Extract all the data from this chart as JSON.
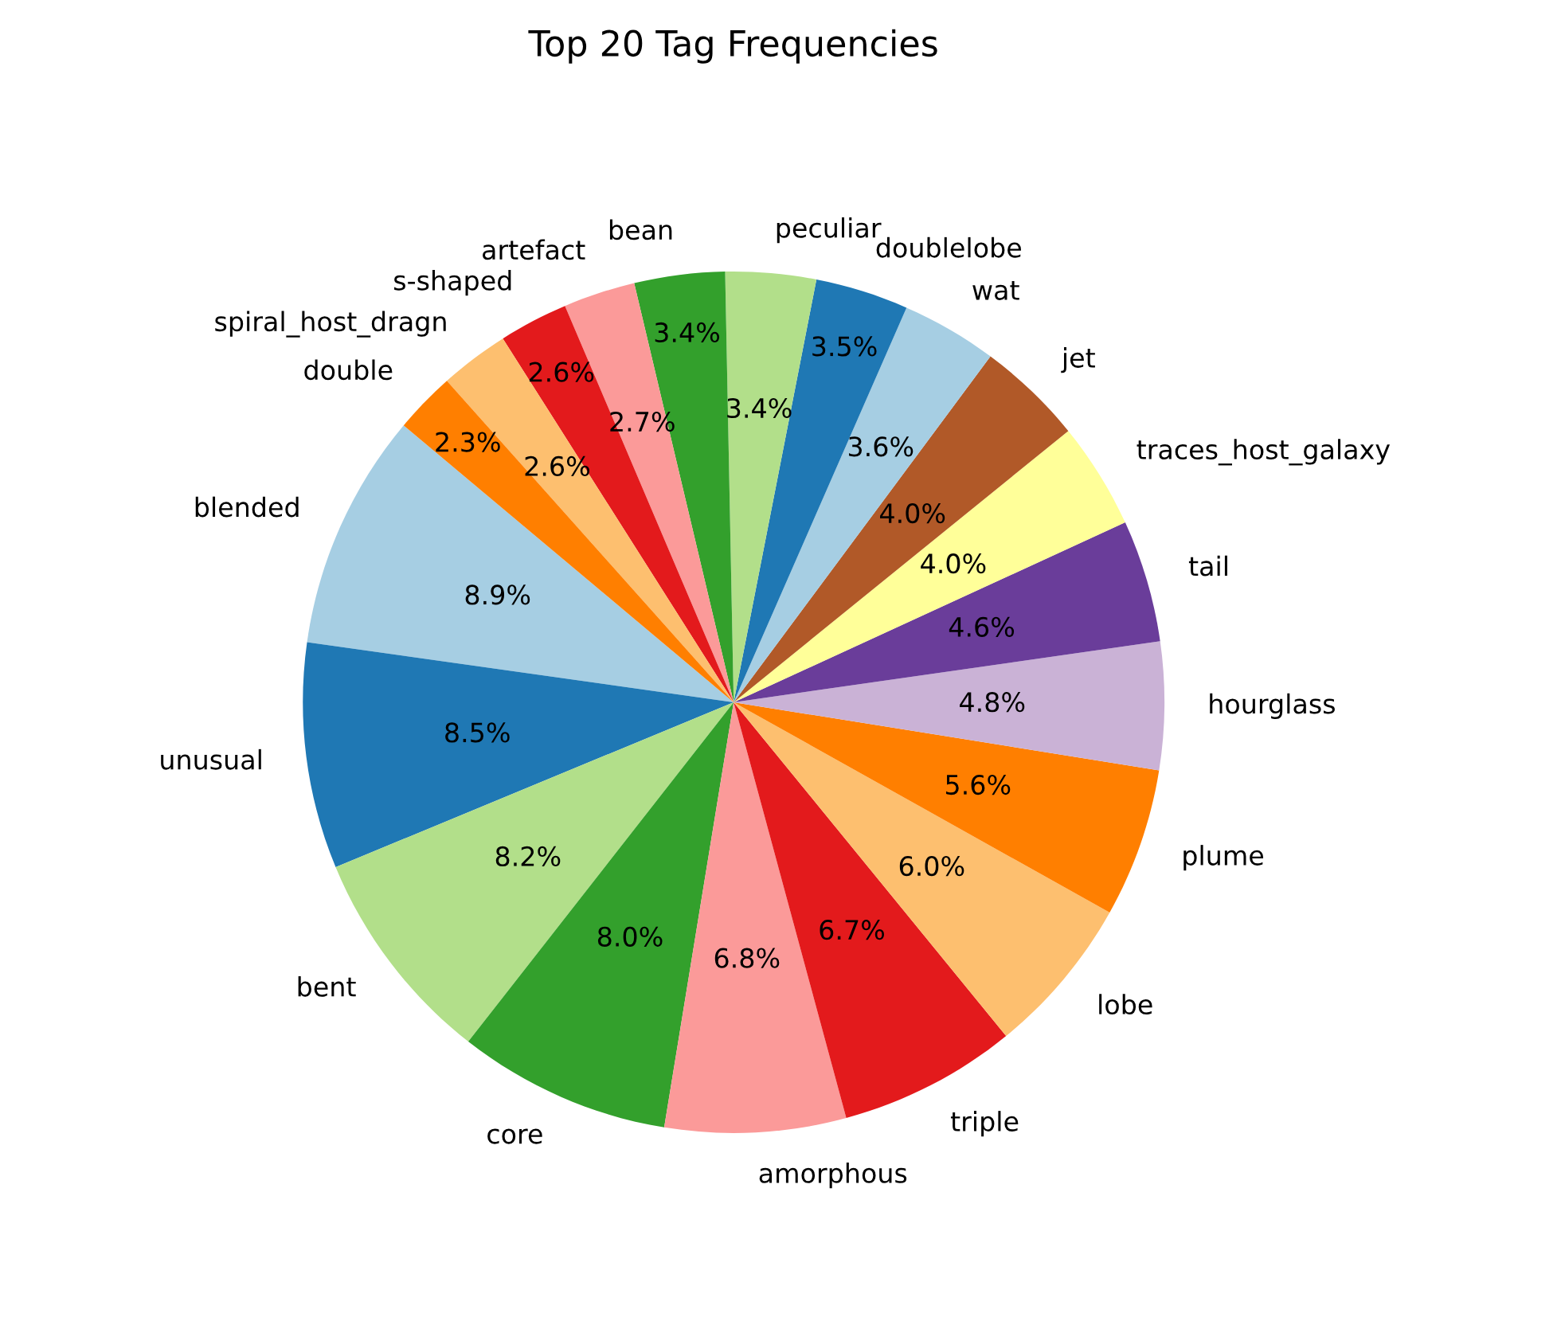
{
  "chart_data": {
    "type": "pie",
    "title": "Top 20 Tag Frequencies",
    "categories": [
      "blended",
      "unusual",
      "bent",
      "core",
      "amorphous",
      "triple",
      "lobe",
      "plume",
      "hourglass",
      "tail",
      "traces_host_galaxy",
      "jet",
      "wat",
      "doublelobe",
      "peculiar",
      "bean",
      "artefact",
      "s-shaped",
      "spiral_host_dragn",
      "double"
    ],
    "values": [
      8.9,
      8.5,
      8.2,
      8.0,
      6.8,
      6.7,
      6.0,
      5.6,
      4.8,
      4.6,
      4.0,
      4.0,
      3.6,
      3.5,
      3.4,
      3.4,
      2.7,
      2.6,
      2.6,
      2.3
    ],
    "value_labels": [
      "8.9%",
      "8.5%",
      "8.2%",
      "8.0%",
      "6.8%",
      "6.7%",
      "6.0%",
      "5.6%",
      "4.8%",
      "4.6%",
      "4.0%",
      "4.0%",
      "3.6%",
      "3.5%",
      "3.4%",
      "3.4%",
      "2.7%",
      "2.6%",
      "2.6%",
      "2.3%"
    ],
    "colors": [
      "#a6cee3",
      "#1f78b4",
      "#b2df8a",
      "#33a02c",
      "#fb9a99",
      "#e31a1c",
      "#fdbf6f",
      "#ff7f00",
      "#cab2d6",
      "#6a3d9a",
      "#ffff99",
      "#b15928",
      "#a6cee3",
      "#1f78b4",
      "#b2df8a",
      "#33a02c",
      "#fb9a99",
      "#e31a1c",
      "#fdbf6f",
      "#ff7f00"
    ]
  }
}
